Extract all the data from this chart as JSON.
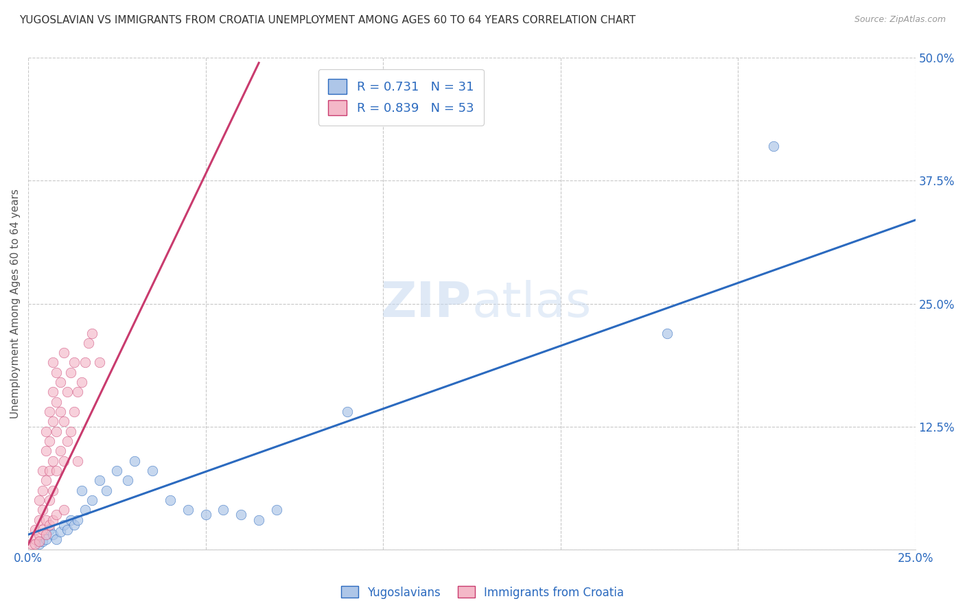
{
  "title": "YUGOSLAVIAN VS IMMIGRANTS FROM CROATIA UNEMPLOYMENT AMONG AGES 60 TO 64 YEARS CORRELATION CHART",
  "source": "Source: ZipAtlas.com",
  "ylabel": "Unemployment Among Ages 60 to 64 years",
  "xlim": [
    0,
    0.25
  ],
  "ylim": [
    0,
    0.5
  ],
  "xticks": [
    0.0,
    0.05,
    0.1,
    0.15,
    0.2,
    0.25
  ],
  "xtick_labels": [
    "0.0%",
    "",
    "",
    "",
    "",
    "25.0%"
  ],
  "yticks": [
    0.0,
    0.125,
    0.25,
    0.375,
    0.5
  ],
  "ytick_labels": [
    "",
    "12.5%",
    "25.0%",
    "37.5%",
    "50.0%"
  ],
  "blue_R": 0.731,
  "blue_N": 31,
  "pink_R": 0.839,
  "pink_N": 53,
  "blue_color": "#aec6e8",
  "pink_color": "#f4b8c8",
  "blue_line_color": "#2b6abf",
  "pink_line_color": "#c93b6e",
  "legend_label_blue": "Yugoslavians",
  "legend_label_pink": "Immigrants from Croatia",
  "blue_scatter": [
    [
      0.003,
      0.005
    ],
    [
      0.004,
      0.008
    ],
    [
      0.005,
      0.01
    ],
    [
      0.006,
      0.02
    ],
    [
      0.007,
      0.015
    ],
    [
      0.008,
      0.01
    ],
    [
      0.009,
      0.018
    ],
    [
      0.01,
      0.025
    ],
    [
      0.011,
      0.02
    ],
    [
      0.012,
      0.03
    ],
    [
      0.013,
      0.025
    ],
    [
      0.014,
      0.03
    ],
    [
      0.015,
      0.06
    ],
    [
      0.016,
      0.04
    ],
    [
      0.018,
      0.05
    ],
    [
      0.02,
      0.07
    ],
    [
      0.022,
      0.06
    ],
    [
      0.025,
      0.08
    ],
    [
      0.028,
      0.07
    ],
    [
      0.03,
      0.09
    ],
    [
      0.035,
      0.08
    ],
    [
      0.04,
      0.05
    ],
    [
      0.045,
      0.04
    ],
    [
      0.05,
      0.035
    ],
    [
      0.055,
      0.04
    ],
    [
      0.06,
      0.035
    ],
    [
      0.065,
      0.03
    ],
    [
      0.07,
      0.04
    ],
    [
      0.09,
      0.14
    ],
    [
      0.18,
      0.22
    ],
    [
      0.21,
      0.41
    ]
  ],
  "pink_scatter": [
    [
      0.001,
      0.005
    ],
    [
      0.002,
      0.01
    ],
    [
      0.002,
      0.02
    ],
    [
      0.003,
      0.015
    ],
    [
      0.003,
      0.03
    ],
    [
      0.003,
      0.05
    ],
    [
      0.004,
      0.04
    ],
    [
      0.004,
      0.06
    ],
    [
      0.004,
      0.08
    ],
    [
      0.005,
      0.03
    ],
    [
      0.005,
      0.07
    ],
    [
      0.005,
      0.1
    ],
    [
      0.005,
      0.12
    ],
    [
      0.006,
      0.05
    ],
    [
      0.006,
      0.08
    ],
    [
      0.006,
      0.11
    ],
    [
      0.006,
      0.14
    ],
    [
      0.007,
      0.06
    ],
    [
      0.007,
      0.09
    ],
    [
      0.007,
      0.13
    ],
    [
      0.007,
      0.16
    ],
    [
      0.007,
      0.19
    ],
    [
      0.008,
      0.08
    ],
    [
      0.008,
      0.12
    ],
    [
      0.008,
      0.15
    ],
    [
      0.008,
      0.18
    ],
    [
      0.009,
      0.1
    ],
    [
      0.009,
      0.14
    ],
    [
      0.009,
      0.17
    ],
    [
      0.01,
      0.09
    ],
    [
      0.01,
      0.13
    ],
    [
      0.01,
      0.2
    ],
    [
      0.011,
      0.11
    ],
    [
      0.011,
      0.16
    ],
    [
      0.012,
      0.12
    ],
    [
      0.012,
      0.18
    ],
    [
      0.013,
      0.14
    ],
    [
      0.013,
      0.19
    ],
    [
      0.014,
      0.16
    ],
    [
      0.015,
      0.17
    ],
    [
      0.016,
      0.19
    ],
    [
      0.017,
      0.21
    ],
    [
      0.018,
      0.22
    ],
    [
      0.002,
      0.005
    ],
    [
      0.003,
      0.008
    ],
    [
      0.004,
      0.02
    ],
    [
      0.005,
      0.015
    ],
    [
      0.006,
      0.025
    ],
    [
      0.007,
      0.03
    ],
    [
      0.008,
      0.035
    ],
    [
      0.01,
      0.04
    ],
    [
      0.014,
      0.09
    ],
    [
      0.02,
      0.19
    ]
  ],
  "blue_line_x": [
    0.0,
    0.25
  ],
  "blue_line_y": [
    0.015,
    0.335
  ],
  "pink_line_x": [
    0.0,
    0.065
  ],
  "pink_line_y": [
    0.005,
    0.495
  ]
}
